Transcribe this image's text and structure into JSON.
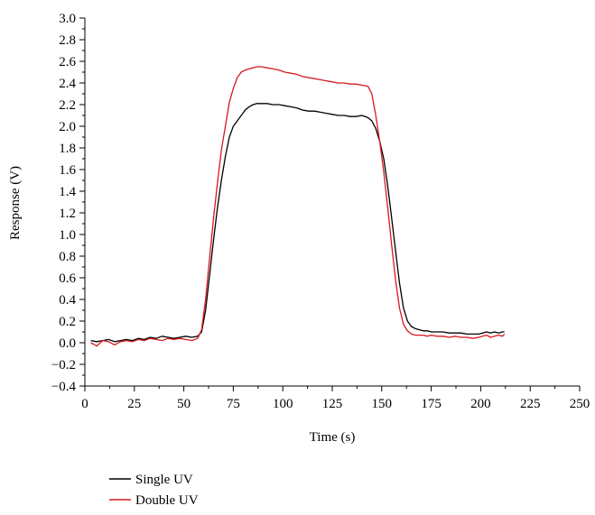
{
  "chart_data": {
    "type": "line",
    "title": "",
    "xlabel": "Time (s)",
    "ylabel": "Response (V)",
    "xlim": [
      0,
      250
    ],
    "ylim": [
      -0.4,
      3.0
    ],
    "x_ticks": [
      0,
      25,
      50,
      75,
      100,
      125,
      150,
      175,
      200,
      225,
      250
    ],
    "x_tick_labels": [
      "0",
      "25",
      "50",
      "75",
      "100",
      "125",
      "150",
      "175",
      "200",
      "225",
      "250"
    ],
    "y_ticks": [
      -0.4,
      -0.2,
      0.0,
      0.2,
      0.4,
      0.6,
      0.8,
      1.0,
      1.2,
      1.4,
      1.6,
      1.8,
      2.0,
      2.2,
      2.4,
      2.6,
      2.8,
      3.0
    ],
    "y_tick_labels": [
      "−0.4",
      "−0.2",
      "0.0",
      "0.2",
      "0.4",
      "0.6",
      "0.8",
      "1.0",
      "1.2",
      "1.4",
      "1.6",
      "1.8",
      "2.0",
      "2.2",
      "2.4",
      "2.6",
      "2.8",
      "3.0"
    ],
    "grid": false,
    "legend_position": "bottom-left, below plot",
    "series": [
      {
        "name": "Single UV",
        "color": "#000000",
        "x": [
          3,
          6,
          9,
          12,
          15,
          18,
          21,
          24,
          27,
          30,
          33,
          36,
          39,
          42,
          45,
          48,
          51,
          54,
          57,
          59,
          61,
          63,
          65,
          67,
          69,
          71,
          73,
          75,
          77,
          79,
          81,
          83,
          85,
          87,
          89,
          92,
          95,
          98,
          101,
          104,
          107,
          110,
          113,
          116,
          119,
          122,
          125,
          128,
          131,
          134,
          137,
          140,
          143,
          145,
          147,
          149,
          151,
          153,
          155,
          157,
          159,
          161,
          163,
          165,
          167,
          169,
          171,
          173,
          175,
          178,
          181,
          184,
          187,
          190,
          193,
          196,
          199,
          201,
          203,
          205,
          207,
          209,
          211,
          212
        ],
        "y": [
          0.02,
          0.01,
          0.02,
          0.03,
          0.01,
          0.02,
          0.03,
          0.02,
          0.04,
          0.03,
          0.05,
          0.04,
          0.06,
          0.05,
          0.04,
          0.05,
          0.06,
          0.05,
          0.06,
          0.1,
          0.3,
          0.62,
          0.95,
          1.25,
          1.5,
          1.72,
          1.9,
          2.0,
          2.05,
          2.1,
          2.15,
          2.18,
          2.2,
          2.21,
          2.21,
          2.21,
          2.2,
          2.2,
          2.19,
          2.18,
          2.17,
          2.15,
          2.14,
          2.14,
          2.13,
          2.12,
          2.11,
          2.1,
          2.1,
          2.09,
          2.09,
          2.1,
          2.08,
          2.05,
          1.98,
          1.86,
          1.7,
          1.45,
          1.15,
          0.85,
          0.55,
          0.32,
          0.2,
          0.15,
          0.13,
          0.12,
          0.11,
          0.11,
          0.1,
          0.1,
          0.1,
          0.09,
          0.09,
          0.09,
          0.08,
          0.08,
          0.08,
          0.09,
          0.1,
          0.09,
          0.1,
          0.09,
          0.1,
          0.1
        ]
      },
      {
        "name": "Double UV",
        "color": "#d7191c",
        "x": [
          3,
          6,
          9,
          12,
          15,
          18,
          21,
          24,
          27,
          30,
          33,
          36,
          39,
          42,
          45,
          48,
          51,
          54,
          57,
          59,
          61,
          63,
          65,
          67,
          69,
          71,
          73,
          75,
          77,
          79,
          81,
          83,
          85,
          87,
          89,
          92,
          95,
          98,
          101,
          104,
          107,
          110,
          113,
          116,
          119,
          122,
          125,
          128,
          131,
          134,
          137,
          140,
          143,
          145,
          147,
          149,
          151,
          153,
          155,
          157,
          159,
          161,
          163,
          165,
          167,
          169,
          171,
          173,
          175,
          178,
          181,
          184,
          187,
          190,
          193,
          196,
          199,
          201,
          203,
          205,
          207,
          209,
          211,
          212
        ],
        "y": [
          0.0,
          -0.03,
          0.02,
          0.01,
          -0.02,
          0.01,
          0.02,
          0.01,
          0.03,
          0.02,
          0.04,
          0.03,
          0.02,
          0.04,
          0.03,
          0.04,
          0.03,
          0.02,
          0.04,
          0.12,
          0.4,
          0.78,
          1.15,
          1.48,
          1.78,
          2.0,
          2.22,
          2.35,
          2.45,
          2.5,
          2.52,
          2.53,
          2.54,
          2.55,
          2.55,
          2.54,
          2.53,
          2.52,
          2.5,
          2.49,
          2.48,
          2.46,
          2.45,
          2.44,
          2.43,
          2.42,
          2.41,
          2.4,
          2.4,
          2.39,
          2.39,
          2.38,
          2.37,
          2.3,
          2.1,
          1.86,
          1.58,
          1.25,
          0.9,
          0.58,
          0.32,
          0.17,
          0.11,
          0.08,
          0.07,
          0.07,
          0.07,
          0.06,
          0.07,
          0.06,
          0.06,
          0.05,
          0.06,
          0.05,
          0.05,
          0.04,
          0.05,
          0.06,
          0.07,
          0.05,
          0.06,
          0.07,
          0.06,
          0.08
        ]
      }
    ]
  }
}
